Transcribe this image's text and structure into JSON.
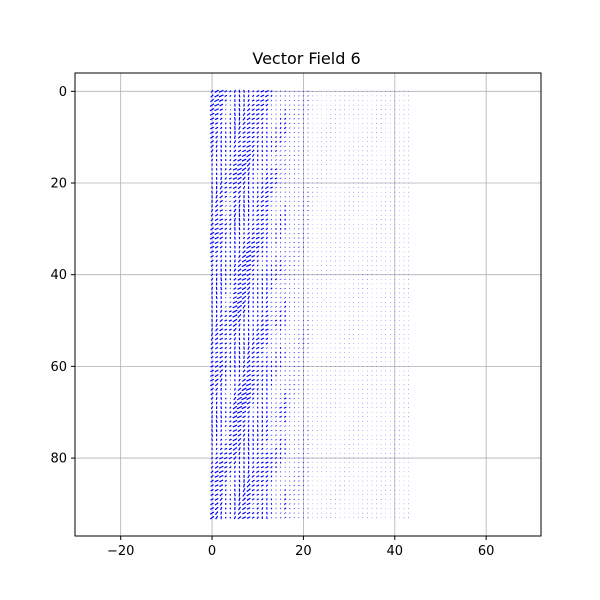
{
  "chart_data": {
    "type": "quiver",
    "title": "Vector Field 6",
    "xlabel": "",
    "ylabel": "",
    "xlim": [
      -30,
      72
    ],
    "ylim": [
      97,
      -4
    ],
    "y_inverted": true,
    "xticks": [
      -20,
      0,
      20,
      40,
      60
    ],
    "yticks": [
      0,
      20,
      40,
      60,
      80
    ],
    "grid": true,
    "arrow_color": "#0000ff",
    "grid_color": "#b0b0b0",
    "field": {
      "x_range": [
        0,
        43
      ],
      "y_range": [
        0,
        93
      ],
      "step": 1,
      "description_of_bands": [
        {
          "x_from": 0,
          "x_to": 3,
          "strength": 0.9
        },
        {
          "x_from": 3,
          "x_to": 5,
          "strength": 0.6
        },
        {
          "x_from": 5,
          "x_to": 9,
          "strength": 1.0
        },
        {
          "x_from": 9,
          "x_to": 13,
          "strength": 0.7
        },
        {
          "x_from": 13,
          "x_to": 17,
          "strength": 0.5
        },
        {
          "x_from": 17,
          "x_to": 22,
          "strength": 0.35
        },
        {
          "x_from": 22,
          "x_to": 43,
          "strength": 0.12
        }
      ]
    }
  }
}
